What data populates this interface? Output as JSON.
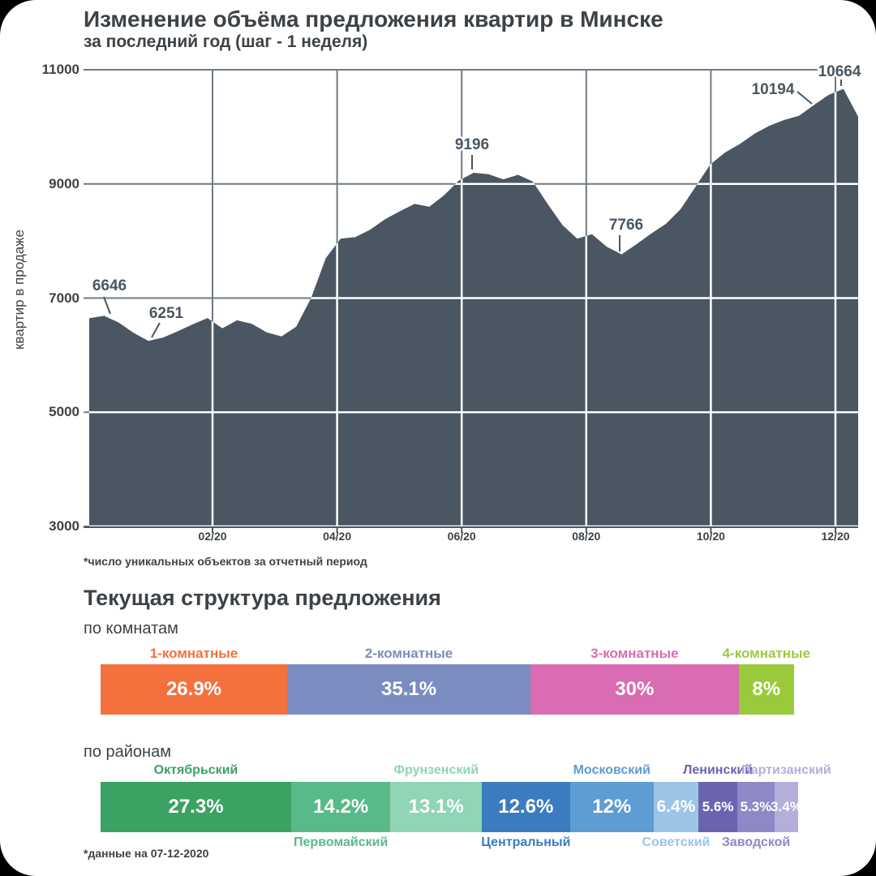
{
  "section_title": "Текущая структура предложения",
  "chart_data": [
    {
      "type": "area",
      "title": "Изменение объёма предложения квартир в Минске",
      "subtitle": "за последний год (шаг - 1 неделя)",
      "ylabel": "квартир в продаже",
      "footnote": "*число уникальных объектов за отчетный период",
      "step": "1 неделя",
      "color": "#4a5662",
      "ylim": [
        3000,
        11000
      ],
      "y_ticks": [
        11000,
        9000,
        7000,
        5000,
        3000
      ],
      "x_tick_labels": [
        "02/20",
        "04/20",
        "06/20",
        "08/20",
        "10/20",
        "12/20"
      ],
      "values": [
        6646,
        6690,
        6570,
        6390,
        6251,
        6310,
        6420,
        6540,
        6650,
        6470,
        6610,
        6550,
        6400,
        6330,
        6500,
        7000,
        7700,
        8040,
        8070,
        8200,
        8380,
        8520,
        8650,
        8600,
        8800,
        9060,
        9196,
        9170,
        9080,
        9160,
        9040,
        8650,
        8280,
        8040,
        8120,
        7900,
        7766,
        7940,
        8130,
        8300,
        8560,
        8950,
        9340,
        9550,
        9700,
        9880,
        10020,
        10120,
        10194,
        10380,
        10560,
        10664,
        10180
      ],
      "annotations": [
        {
          "text": "6646",
          "week": 0,
          "value": 6646
        },
        {
          "text": "6251",
          "week": 4,
          "value": 6251
        },
        {
          "text": "9196",
          "week": 26,
          "value": 9196
        },
        {
          "text": "7766",
          "week": 36,
          "value": 7766
        },
        {
          "text": "10194",
          "week": 48,
          "value": 10194
        },
        {
          "text": "10664",
          "week": 51,
          "value": 10664
        }
      ]
    },
    {
      "type": "bar",
      "variant": "stacked-horizontal",
      "heading": "по комнатам",
      "categories": [
        "1-комнатные",
        "2-комнатные",
        "3-комнатные",
        "4-комнатные"
      ],
      "values": [
        26.9,
        35.1,
        30,
        8
      ],
      "displays": [
        "26.9%",
        "35.1%",
        "30%",
        "8%"
      ],
      "colors": [
        "#f4703c",
        "#7b8dc0",
        "#d96cb2",
        "#9aca3c"
      ]
    },
    {
      "type": "bar",
      "variant": "stacked-horizontal",
      "heading": "по районам",
      "footnote": "*данные на 07-12-2020",
      "categories": [
        "Октябрьский",
        "Первомайский",
        "Фрунзенский",
        "Центральный",
        "Московский",
        "Советский",
        "Ленинский",
        "Заводской",
        "Партизанский"
      ],
      "values": [
        27.3,
        14.2,
        13.1,
        12.6,
        12,
        6.4,
        5.6,
        5.3,
        3.4
      ],
      "displays": [
        "27.3%",
        "14.2%",
        "13.1%",
        "12.6%",
        "12%",
        "6.4%",
        "5.6%",
        "5.3%",
        "3.4%"
      ],
      "colors": [
        "#3ba263",
        "#58ba88",
        "#90d5b4",
        "#3b7cc0",
        "#5e9cd4",
        "#9bc4e6",
        "#6a64b0",
        "#8e88c6",
        "#b4aedb"
      ],
      "label_positions": [
        "top",
        "bottom",
        "top",
        "bottom",
        "top",
        "bottom",
        "top",
        "bottom",
        "top"
      ]
    }
  ]
}
